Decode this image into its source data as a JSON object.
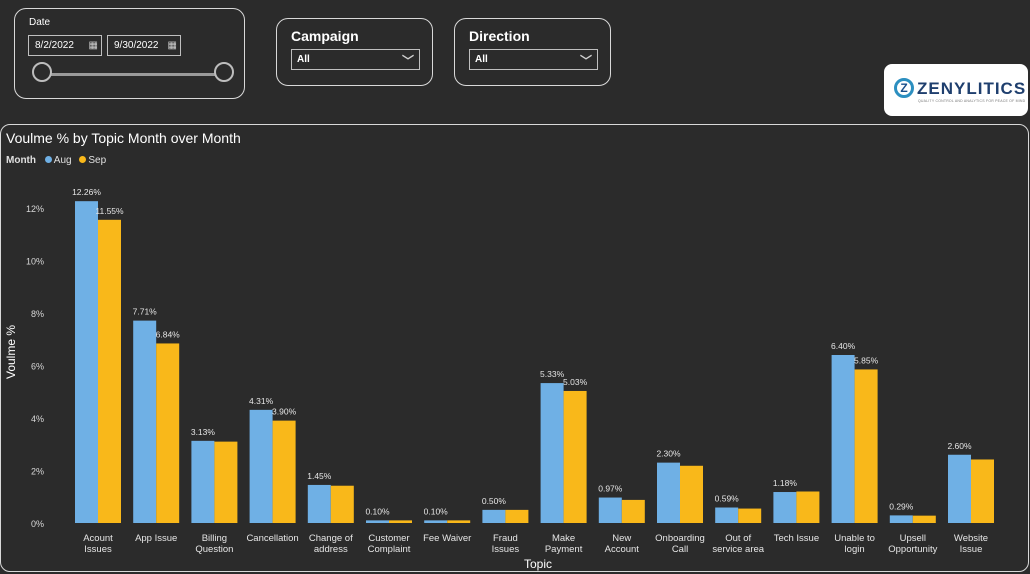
{
  "filters": {
    "date": {
      "label": "Date",
      "start": "8/2/2022",
      "end": "9/30/2022",
      "start_icon": "calendar-icon",
      "end_icon": "calendar-icon"
    },
    "campaign": {
      "label": "Campaign",
      "value": "All"
    },
    "direction": {
      "label": "Direction",
      "value": "All"
    }
  },
  "logo": {
    "name": "ZENYLITICS",
    "tagline": "QUALITY CONTROL AND ANALYTICS FOR PEACE OF MIND"
  },
  "colors": {
    "aug": "#6fb0e5",
    "sep": "#f9b81a",
    "background": "#2b2b2b"
  },
  "chart_data": {
    "type": "bar",
    "title": "Voulme % by Topic Month over Month",
    "legend_title": "Month",
    "legend_placement": "top-left",
    "xlabel": "Topic",
    "ylabel": "Voulme %",
    "ylim": [
      0,
      12.5
    ],
    "yticks": [
      "0%",
      "2%",
      "4%",
      "6%",
      "8%",
      "10%",
      "12%"
    ],
    "grid": false,
    "categories": [
      "Acount Issues",
      "App Issue",
      "Billing Question",
      "Cancellation",
      "Change of address",
      "Customer Complaint",
      "Fee Waiver",
      "Fraud Issues",
      "Make Payment",
      "New Account",
      "Onboarding Call",
      "Out of service area",
      "Tech Issue",
      "Unable to login",
      "Upsell Opportunity",
      "Website Issue"
    ],
    "series": [
      {
        "name": "Aug",
        "values": [
          12.26,
          7.71,
          3.13,
          4.31,
          1.45,
          0.1,
          0.1,
          0.5,
          5.33,
          0.97,
          2.3,
          0.59,
          1.18,
          6.4,
          0.29,
          2.6
        ],
        "labels": [
          "12.26%",
          "7.71%",
          "3.13%",
          "4.31%",
          "1.45%",
          "0.10%",
          "0.10%",
          "0.50%",
          "5.33%",
          "0.97%",
          "2.30%",
          "0.59%",
          "1.18%",
          "6.40%",
          "0.29%",
          "2.60%"
        ]
      },
      {
        "name": "Sep",
        "values": [
          11.55,
          6.84,
          3.1,
          3.9,
          1.42,
          0.1,
          0.1,
          0.5,
          5.03,
          0.88,
          2.18,
          0.55,
          1.2,
          5.85,
          0.28,
          2.42
        ],
        "labels": [
          "11.55%",
          "6.84%",
          "",
          "3.90%",
          "",
          "",
          "",
          "",
          "5.03%",
          "",
          "",
          "",
          "",
          "5.85%",
          "",
          ""
        ]
      }
    ]
  }
}
